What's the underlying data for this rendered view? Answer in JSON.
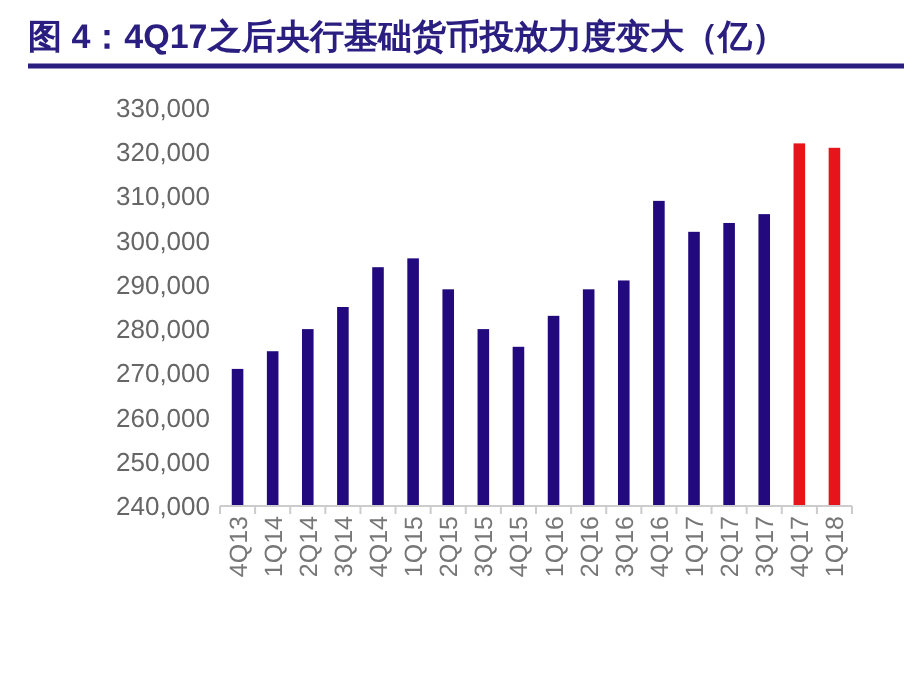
{
  "chart_data": {
    "type": "bar",
    "title": "图 4：4Q17之后央行基础货币投放力度变大（亿）",
    "categories": [
      "4Q13",
      "1Q14",
      "2Q14",
      "3Q14",
      "4Q14",
      "1Q15",
      "2Q15",
      "3Q15",
      "4Q15",
      "1Q16",
      "2Q16",
      "3Q16",
      "4Q16",
      "1Q17",
      "2Q17",
      "3Q17",
      "4Q17",
      "1Q18"
    ],
    "values": [
      271000,
      275000,
      280000,
      285000,
      294000,
      296000,
      289000,
      280000,
      276000,
      283000,
      289000,
      291000,
      309000,
      302000,
      304000,
      306000,
      322000,
      321000
    ],
    "colors": [
      "#22097e",
      "#22097e",
      "#22097e",
      "#22097e",
      "#22097e",
      "#22097e",
      "#22097e",
      "#22097e",
      "#22097e",
      "#22097e",
      "#22097e",
      "#22097e",
      "#22097e",
      "#22097e",
      "#22097e",
      "#22097e",
      "#e8141c",
      "#e8141c"
    ],
    "ylim": [
      240000,
      330000
    ],
    "yticks": [
      {
        "value": 240000,
        "label": "240,000"
      },
      {
        "value": 250000,
        "label": "250,000"
      },
      {
        "value": 260000,
        "label": "260,000"
      },
      {
        "value": 270000,
        "label": "270,000"
      },
      {
        "value": 280000,
        "label": "280,000"
      },
      {
        "value": 290000,
        "label": "290,000"
      },
      {
        "value": 300000,
        "label": "300,000"
      },
      {
        "value": 310000,
        "label": "310,000"
      },
      {
        "value": 320000,
        "label": "320,000"
      },
      {
        "value": 330000,
        "label": "330,000"
      }
    ],
    "grid": false
  }
}
